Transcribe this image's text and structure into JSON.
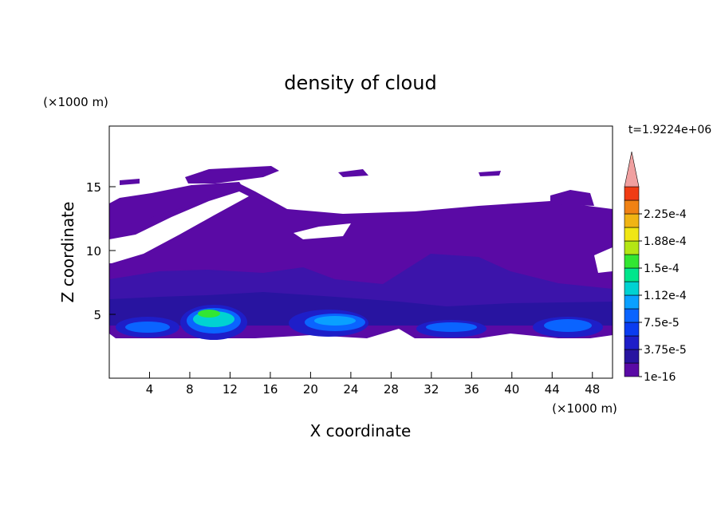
{
  "chart_data": {
    "type": "contour",
    "title": "density of cloud",
    "x_label": "X coordinate",
    "y_label": "Z coordinate",
    "x_unit": "(×1000 m)",
    "y_unit": "(×1000 m)",
    "time_label": "t=1.9224e+06",
    "xlim": [
      0,
      50
    ],
    "ylim": [
      0,
      19.75
    ],
    "xticks": [
      4,
      8,
      12,
      16,
      20,
      24,
      28,
      32,
      36,
      40,
      44,
      48
    ],
    "yticks": [
      5,
      10,
      15
    ],
    "colorbar": {
      "colors": [
        "#5a0aa5",
        "#2814a0",
        "#1e1ec8",
        "#0a3cf0",
        "#0a64ff",
        "#0aa0ff",
        "#00d2d2",
        "#00e68c",
        "#32e632",
        "#b4e614",
        "#f0e614",
        "#f0b414",
        "#f08214",
        "#f03c14"
      ],
      "ticks": [
        {
          "value": 1e-16,
          "label": "1e-16"
        },
        {
          "value": 3.75e-05,
          "label": "3.75e-5"
        },
        {
          "value": 7.5e-05,
          "label": "7.5e-5"
        },
        {
          "value": 0.000112,
          "label": "1.12e-4"
        },
        {
          "value": 0.00015,
          "label": "1.5e-4"
        },
        {
          "value": 0.000188,
          "label": "1.88e-4"
        },
        {
          "value": 0.000225,
          "label": "2.25e-4"
        }
      ],
      "extend_color": "#f0a0a0"
    }
  }
}
